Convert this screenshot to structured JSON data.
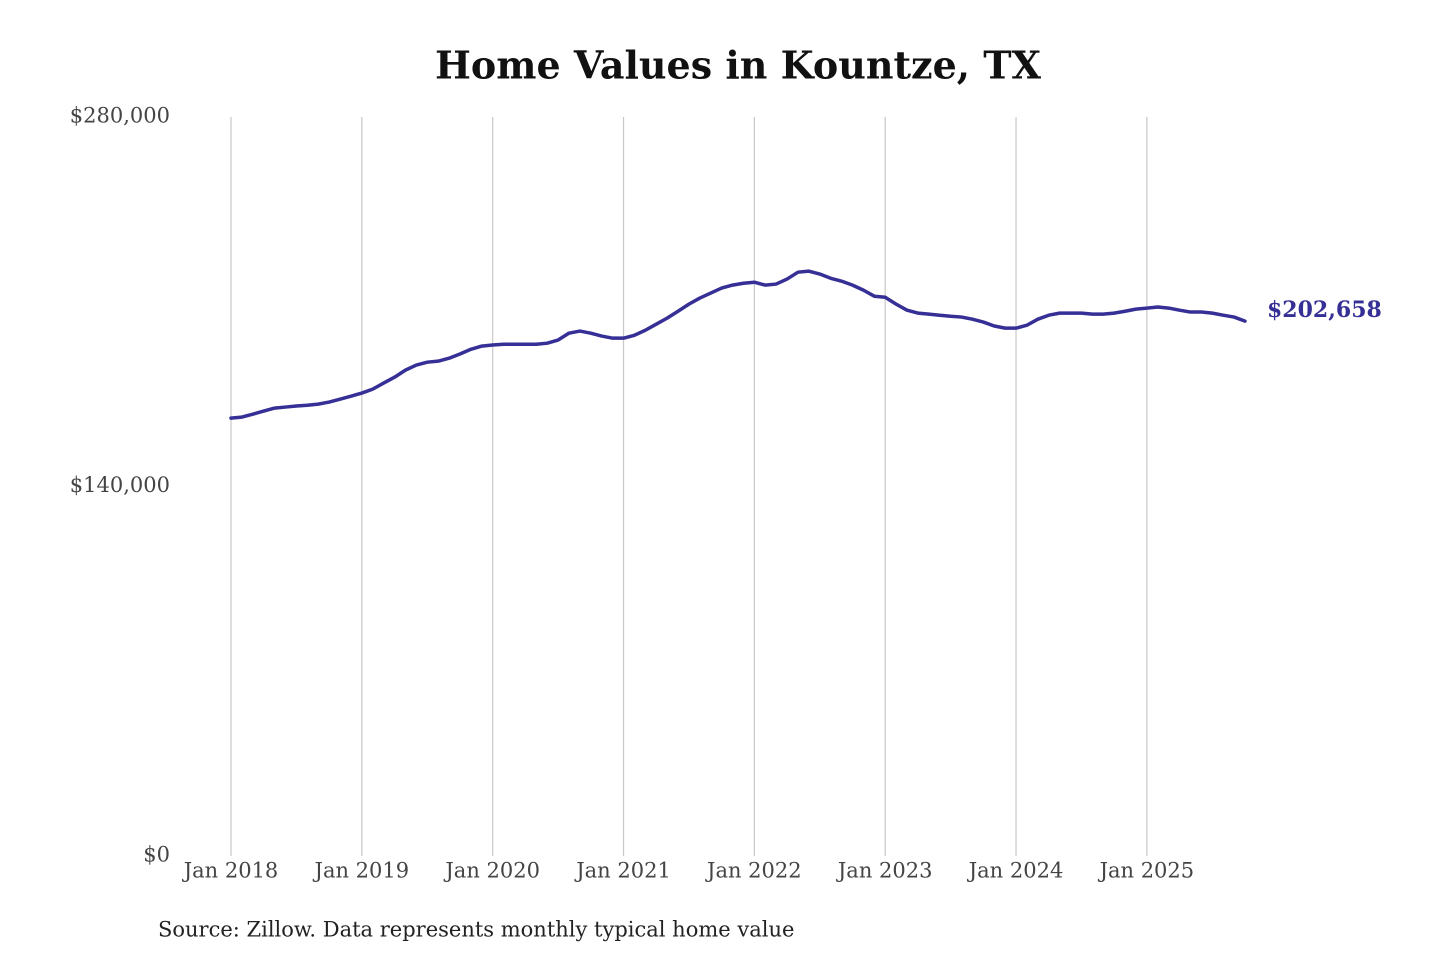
{
  "chart_data": {
    "type": "line",
    "title": "Home Values in Kountze, TX",
    "source": "Source: Zillow. Data represents monthly typical home value",
    "x": [
      "2018-01",
      "2018-02",
      "2018-03",
      "2018-04",
      "2018-05",
      "2018-06",
      "2018-07",
      "2018-08",
      "2018-09",
      "2018-10",
      "2018-11",
      "2018-12",
      "2019-01",
      "2019-02",
      "2019-03",
      "2019-04",
      "2019-05",
      "2019-06",
      "2019-07",
      "2019-08",
      "2019-09",
      "2019-10",
      "2019-11",
      "2019-12",
      "2020-01",
      "2020-02",
      "2020-03",
      "2020-04",
      "2020-05",
      "2020-06",
      "2020-07",
      "2020-08",
      "2020-09",
      "2020-10",
      "2020-11",
      "2020-12",
      "2021-01",
      "2021-02",
      "2021-03",
      "2021-04",
      "2021-05",
      "2021-06",
      "2021-07",
      "2021-08",
      "2021-09",
      "2021-10",
      "2021-11",
      "2021-12",
      "2022-01",
      "2022-02",
      "2022-03",
      "2022-04",
      "2022-05",
      "2022-06",
      "2022-07",
      "2022-08",
      "2022-09",
      "2022-10",
      "2022-11",
      "2022-12",
      "2023-01",
      "2023-02",
      "2023-03",
      "2023-04",
      "2023-05",
      "2023-06",
      "2023-07",
      "2023-08",
      "2023-09",
      "2023-10",
      "2023-11",
      "2023-12",
      "2024-01",
      "2024-02",
      "2024-03",
      "2024-04",
      "2024-05",
      "2024-06",
      "2024-07",
      "2024-08",
      "2024-09",
      "2024-10",
      "2024-11",
      "2024-12",
      "2025-01",
      "2025-02",
      "2025-03",
      "2025-04",
      "2025-05",
      "2025-06",
      "2025-07",
      "2025-08",
      "2025-09",
      "2025-10"
    ],
    "series": [
      {
        "name": "Home value",
        "color": "#362f96",
        "values": [
          165900,
          166300,
          167400,
          168600,
          169700,
          170100,
          170500,
          170800,
          171200,
          172000,
          173100,
          174200,
          175400,
          176900,
          179200,
          181400,
          184100,
          186000,
          187100,
          187500,
          188600,
          190200,
          192000,
          193200,
          193600,
          193900,
          193900,
          193900,
          193900,
          194300,
          195500,
          198100,
          198900,
          198100,
          197000,
          196200,
          196200,
          197300,
          199200,
          201500,
          203800,
          206400,
          209100,
          211400,
          213300,
          215200,
          216300,
          217000,
          217400,
          216300,
          216700,
          218600,
          221200,
          221600,
          220500,
          218900,
          217800,
          216300,
          214400,
          212100,
          211700,
          209100,
          206800,
          205700,
          205300,
          204900,
          204500,
          204200,
          203400,
          202300,
          200800,
          200000,
          200000,
          201100,
          203400,
          204900,
          205700,
          205700,
          205700,
          205300,
          205300,
          205700,
          206400,
          207200,
          207600,
          208000,
          207600,
          206800,
          206100,
          206100,
          205700,
          204900,
          204200,
          202658
        ]
      }
    ],
    "last_value_label": "$202,658",
    "xlim": [
      "2018-01",
      "2025-10"
    ],
    "xticks": [
      {
        "value": "2018-01",
        "label": "Jan 2018"
      },
      {
        "value": "2019-01",
        "label": "Jan 2019"
      },
      {
        "value": "2020-01",
        "label": "Jan 2020"
      },
      {
        "value": "2021-01",
        "label": "Jan 2021"
      },
      {
        "value": "2022-01",
        "label": "Jan 2022"
      },
      {
        "value": "2023-01",
        "label": "Jan 2023"
      },
      {
        "value": "2024-01",
        "label": "Jan 2024"
      },
      {
        "value": "2025-01",
        "label": "Jan 2025"
      }
    ],
    "ylim": [
      0,
      280000
    ],
    "yticks": [
      {
        "value": 0,
        "label": "$0"
      },
      {
        "value": 140000,
        "label": "$140,000"
      },
      {
        "value": 280000,
        "label": "$280,000"
      }
    ],
    "grid": "x"
  }
}
